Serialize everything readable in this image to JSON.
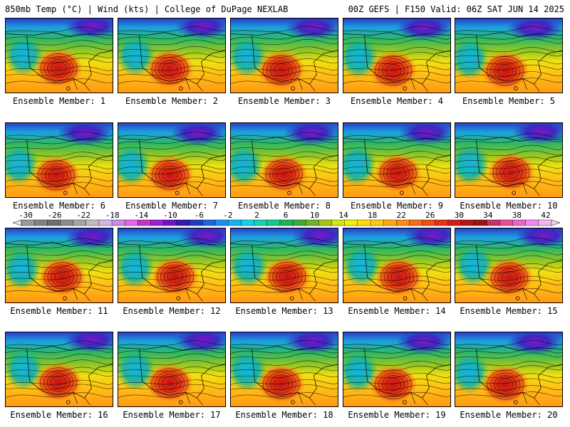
{
  "header": {
    "left": "850mb Temp (°C) | Wind (kts) | College of DuPage NEXLAB",
    "right": "00Z GEFS | F150 Valid: 06Z SAT JUN 14 2025"
  },
  "panels": [
    {
      "label": "Ensemble Member: 1"
    },
    {
      "label": "Ensemble Member: 2"
    },
    {
      "label": "Ensemble Member: 3"
    },
    {
      "label": "Ensemble Member: 4"
    },
    {
      "label": "Ensemble Member: 5"
    },
    {
      "label": "Ensemble Member: 6"
    },
    {
      "label": "Ensemble Member: 7"
    },
    {
      "label": "Ensemble Member: 8"
    },
    {
      "label": "Ensemble Member: 9"
    },
    {
      "label": "Ensemble Member: 10"
    },
    {
      "label": "Ensemble Member: 11"
    },
    {
      "label": "Ensemble Member: 12"
    },
    {
      "label": "Ensemble Member: 13"
    },
    {
      "label": "Ensemble Member: 14"
    },
    {
      "label": "Ensemble Member: 15"
    },
    {
      "label": "Ensemble Member: 16"
    },
    {
      "label": "Ensemble Member: 17"
    },
    {
      "label": "Ensemble Member: 18"
    },
    {
      "label": "Ensemble Member: 19"
    },
    {
      "label": "Ensemble Member: 20"
    }
  ],
  "colorbar": {
    "ticks": [
      "-30",
      "-26",
      "-22",
      "-18",
      "-14",
      "-10",
      "-6",
      "-2",
      "2",
      "6",
      "10",
      "14",
      "18",
      "22",
      "26",
      "30",
      "34",
      "38",
      "42"
    ],
    "colors": [
      "#9a9a9a",
      "#828282",
      "#6e6e6e",
      "#8c8c8c",
      "#a5a5a5",
      "#bdbdbd",
      "#d2b4e6",
      "#c88ce6",
      "#e664e6",
      "#c832c8",
      "#9b1ed2",
      "#6e14c8",
      "#3c14b4",
      "#1e3cc8",
      "#1e64dc",
      "#1e8cf0",
      "#14b4f0",
      "#14d2e6",
      "#14d2b4",
      "#14c88c",
      "#1eb45a",
      "#3caa3c",
      "#6eb428",
      "#a0c814",
      "#d2e614",
      "#f0f00a",
      "#ffdc0a",
      "#ffc814",
      "#ffaa14",
      "#ff8c14",
      "#f56e14",
      "#f05014",
      "#e63214",
      "#d21e14",
      "#b41414",
      "#961414",
      "#c83264",
      "#e65096",
      "#f064c8",
      "#f08cf0",
      "#f5b4f0"
    ],
    "accent": "#000000"
  }
}
